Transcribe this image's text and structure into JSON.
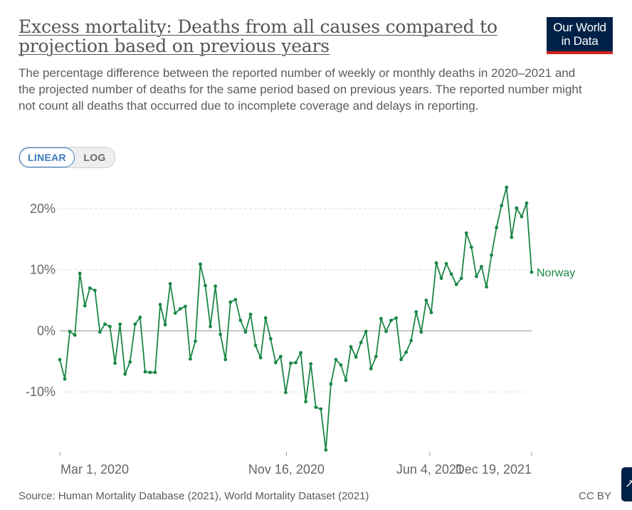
{
  "header": {
    "title": "Excess mortality: Deaths from all causes compared to projection based on previous years",
    "subtitle": "The percentage difference between the reported number of weekly or monthly deaths in 2020–2021 and the projected number of deaths for the same period based on previous years. The reported number might not count all deaths that occurred due to incomplete coverage and delays in reporting.",
    "logo_line1": "Our World",
    "logo_line2": "in Data"
  },
  "controls": {
    "linear_label": "LINEAR",
    "log_label": "LOG",
    "active_scale": "linear"
  },
  "footer": {
    "source": "Source: Human Mortality Database (2021), World Mortality Dataset (2021)",
    "license": "CC BY",
    "side_tab_glyph": "↗"
  },
  "colors": {
    "series": "#1a8745",
    "grid": "#dddddd",
    "zero_line": "#999999",
    "logo_bg": "#002147",
    "logo_accent": "#ce261e",
    "active_button": "#3a7bbf"
  },
  "chart_data": {
    "type": "line",
    "title": "",
    "xlabel": "",
    "ylabel": "",
    "ylim": [
      -20,
      25
    ],
    "yticks": [
      -10,
      0,
      10,
      20
    ],
    "ytick_labels": [
      "-10%",
      "0%",
      "10%",
      "20%"
    ],
    "xticks": [
      "Mar 1, 2020",
      "Nov 16, 2020",
      "Jun 4, 2021",
      "Dec 19, 2021"
    ],
    "grid": true,
    "legend": "inline label at end of line",
    "series": [
      {
        "name": "Norway",
        "points": [
          [
            "2020-01-05",
            -4.7
          ],
          [
            "2020-01-12",
            -7.9
          ],
          [
            "2020-01-19",
            -0.1
          ],
          [
            "2020-01-26",
            -0.7
          ],
          [
            "2020-02-02",
            9.4
          ],
          [
            "2020-02-09",
            4.1
          ],
          [
            "2020-02-16",
            7.0
          ],
          [
            "2020-02-23",
            6.6
          ],
          [
            "2020-03-01",
            -0.2
          ],
          [
            "2020-03-08",
            1.1
          ],
          [
            "2020-03-15",
            0.7
          ],
          [
            "2020-03-22",
            -5.3
          ],
          [
            "2020-03-29",
            1.1
          ],
          [
            "2020-04-05",
            -7.1
          ],
          [
            "2020-04-12",
            -5.1
          ],
          [
            "2020-04-19",
            1.1
          ],
          [
            "2020-04-26",
            2.2
          ],
          [
            "2020-05-03",
            -6.7
          ],
          [
            "2020-05-10",
            -6.8
          ],
          [
            "2020-05-17",
            -6.8
          ],
          [
            "2020-05-24",
            4.3
          ],
          [
            "2020-05-31",
            1.0
          ],
          [
            "2020-06-07",
            7.7
          ],
          [
            "2020-06-14",
            2.9
          ],
          [
            "2020-06-21",
            3.6
          ],
          [
            "2020-06-28",
            4.0
          ],
          [
            "2020-07-05",
            -4.6
          ],
          [
            "2020-07-12",
            -1.7
          ],
          [
            "2020-07-19",
            10.9
          ],
          [
            "2020-07-26",
            7.4
          ],
          [
            "2020-08-02",
            0.7
          ],
          [
            "2020-08-09",
            7.3
          ],
          [
            "2020-08-16",
            -0.6
          ],
          [
            "2020-08-23",
            -4.7
          ],
          [
            "2020-08-30",
            4.7
          ],
          [
            "2020-09-06",
            5.1
          ],
          [
            "2020-09-13",
            1.7
          ],
          [
            "2020-09-20",
            -0.2
          ],
          [
            "2020-09-27",
            2.7
          ],
          [
            "2020-10-04",
            -2.4
          ],
          [
            "2020-10-11",
            -4.4
          ],
          [
            "2020-10-18",
            2.1
          ],
          [
            "2020-10-25",
            -1.3
          ],
          [
            "2020-11-01",
            -5.2
          ],
          [
            "2020-11-08",
            -4.2
          ],
          [
            "2020-11-15",
            -10.1
          ],
          [
            "2020-11-22",
            -5.3
          ],
          [
            "2020-11-29",
            -5.2
          ],
          [
            "2020-12-06",
            -3.6
          ],
          [
            "2020-12-13",
            -11.6
          ],
          [
            "2020-12-20",
            -5.4
          ],
          [
            "2020-12-27",
            -12.5
          ],
          [
            "2021-01-03",
            -12.8
          ],
          [
            "2021-01-10",
            -19.5
          ],
          [
            "2021-01-17",
            -8.7
          ],
          [
            "2021-01-24",
            -4.7
          ],
          [
            "2021-01-31",
            -5.6
          ],
          [
            "2021-02-07",
            -8.1
          ],
          [
            "2021-02-14",
            -2.6
          ],
          [
            "2021-02-21",
            -4.3
          ],
          [
            "2021-02-28",
            -1.9
          ],
          [
            "2021-03-07",
            -0.1
          ],
          [
            "2021-03-14",
            -6.2
          ],
          [
            "2021-03-21",
            -4.2
          ],
          [
            "2021-03-28",
            2.0
          ],
          [
            "2021-04-04",
            -0.1
          ],
          [
            "2021-04-11",
            1.7
          ],
          [
            "2021-04-18",
            2.1
          ],
          [
            "2021-04-25",
            -4.7
          ],
          [
            "2021-05-02",
            -3.5
          ],
          [
            "2021-05-09",
            -1.6
          ],
          [
            "2021-05-16",
            3.1
          ],
          [
            "2021-05-23",
            -0.2
          ],
          [
            "2021-05-30",
            5.0
          ],
          [
            "2021-06-06",
            3.0
          ],
          [
            "2021-06-13",
            11.1
          ],
          [
            "2021-06-20",
            8.6
          ],
          [
            "2021-06-27",
            11.0
          ],
          [
            "2021-07-04",
            9.3
          ],
          [
            "2021-07-11",
            7.6
          ],
          [
            "2021-07-18",
            8.6
          ],
          [
            "2021-07-25",
            16.0
          ],
          [
            "2021-08-01",
            13.7
          ],
          [
            "2021-08-08",
            8.9
          ],
          [
            "2021-08-15",
            10.5
          ],
          [
            "2021-08-22",
            7.2
          ],
          [
            "2021-08-29",
            12.4
          ],
          [
            "2021-09-05",
            16.9
          ],
          [
            "2021-09-12",
            20.5
          ],
          [
            "2021-09-19",
            23.5
          ],
          [
            "2021-09-26",
            15.3
          ],
          [
            "2021-10-03",
            20.1
          ],
          [
            "2021-10-10",
            18.7
          ],
          [
            "2021-10-17",
            20.9
          ],
          [
            "2021-10-24",
            9.6
          ]
        ]
      }
    ]
  }
}
